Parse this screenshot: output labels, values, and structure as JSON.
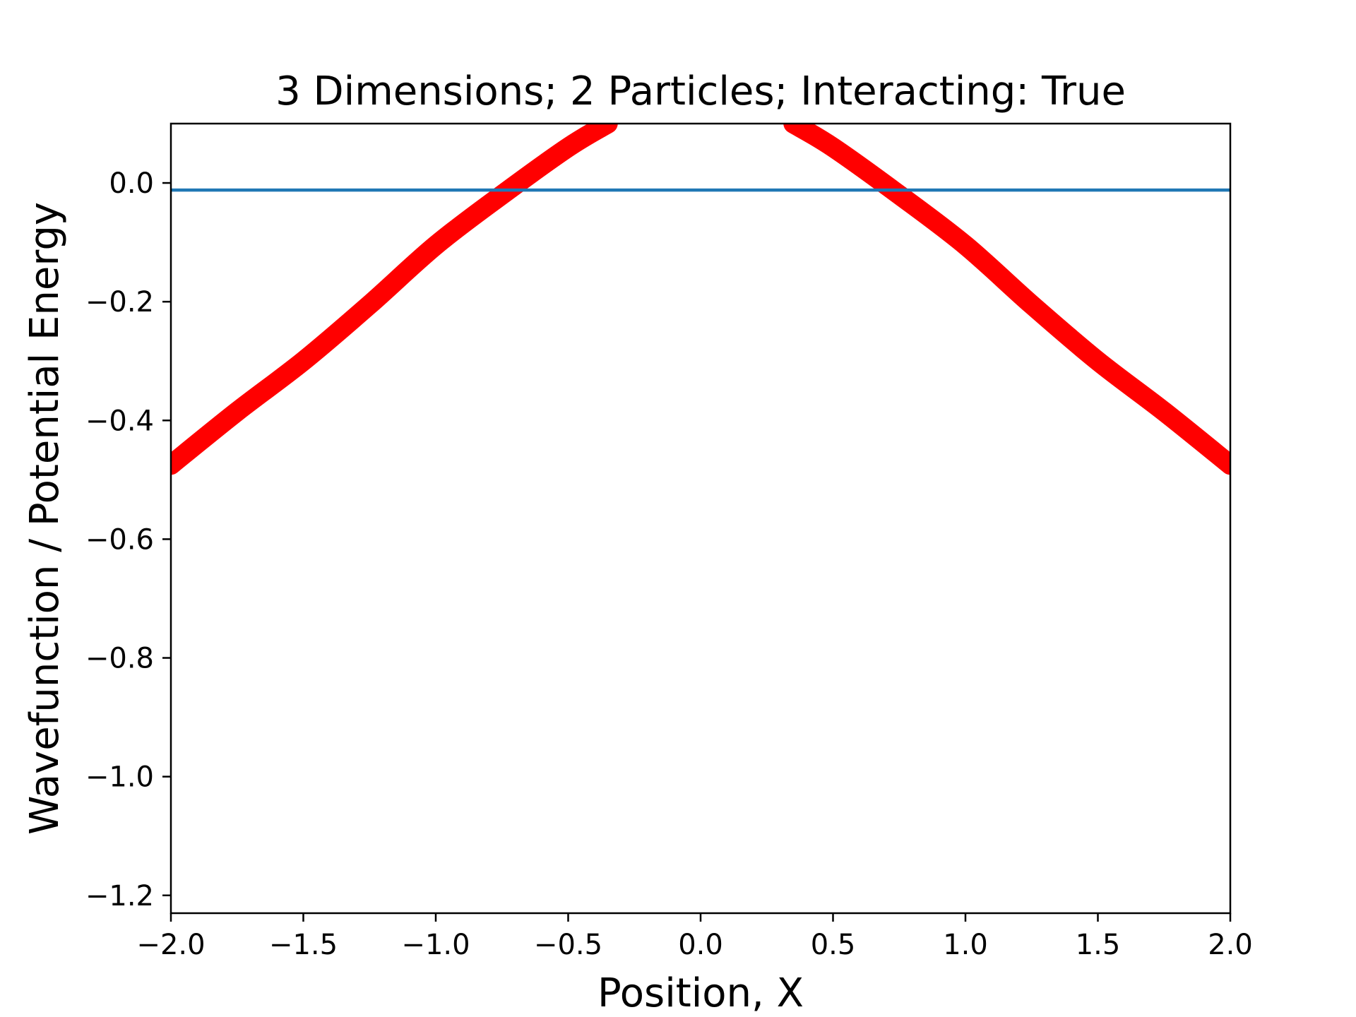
{
  "chart_data": {
    "type": "line",
    "title": "3 Dimensions; 2 Particles; Interacting: True",
    "xlabel": "Position, X",
    "ylabel": "Wavefunction / Potential Energy",
    "xlim": [
      -2.0,
      2.0
    ],
    "ylim": [
      -1.23,
      0.1
    ],
    "xticks": [
      -2.0,
      -1.5,
      -1.0,
      -0.5,
      0.0,
      0.5,
      1.0,
      1.5,
      2.0
    ],
    "xtick_labels": [
      "−2.0",
      "−1.5",
      "−1.0",
      "−0.5",
      "0.0",
      "0.5",
      "1.0",
      "1.5",
      "2.0"
    ],
    "yticks": [
      0.0,
      -0.2,
      -0.4,
      -0.6,
      -0.8,
      -1.0,
      -1.2
    ],
    "ytick_labels": [
      "0.0",
      "−0.2",
      "−0.4",
      "−0.6",
      "−0.8",
      "−1.0",
      "−1.2"
    ],
    "grid": false,
    "series": [
      {
        "color": "#ff0000",
        "style": "thick-markers",
        "x": [
          -2.0,
          -1.75,
          -1.5,
          -1.25,
          -1.0,
          -0.75,
          -0.5,
          -0.35,
          0.35,
          0.5,
          0.75,
          1.0,
          1.25,
          1.5,
          1.75,
          2.0
        ],
        "y": [
          -0.475,
          -0.385,
          -0.3,
          -0.205,
          -0.105,
          -0.02,
          0.06,
          0.1,
          0.1,
          0.06,
          -0.02,
          -0.105,
          -0.205,
          -0.3,
          -0.385,
          -0.475
        ]
      },
      {
        "color": "#1f77b4",
        "style": "line",
        "x": [
          -2.0,
          2.0
        ],
        "y": [
          -0.012,
          -0.012
        ]
      }
    ]
  }
}
